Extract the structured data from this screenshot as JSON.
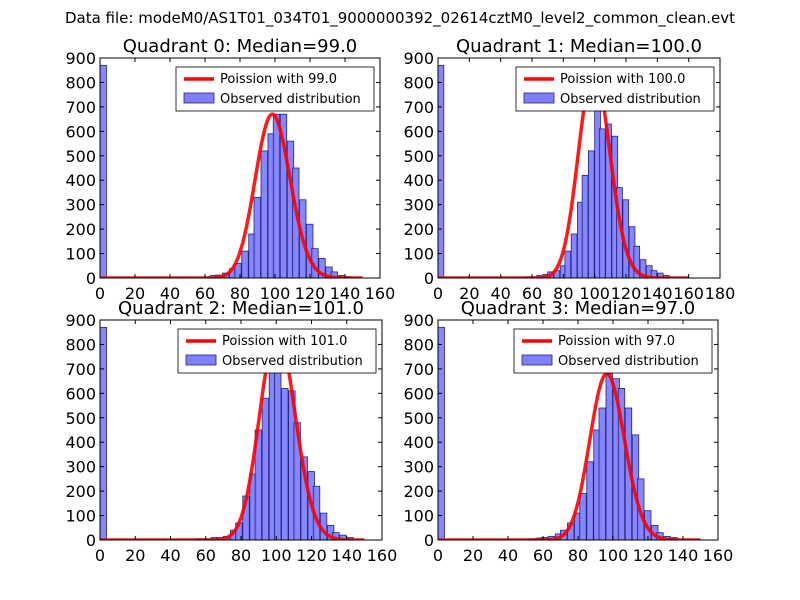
{
  "figure": {
    "suptitle": "Data file: modeM0/AS1T01_034T01_9000000392_02614cztM0_level2_common_clean.evt"
  },
  "colors": {
    "hist_fill": "#8080ff",
    "hist_edge": "#23237a",
    "poisson": "#ff0000"
  },
  "chart_data": [
    {
      "type": "bar",
      "title": "Quadrant 0: Median=99.0",
      "xlim": [
        0,
        160
      ],
      "ylim": [
        0,
        900
      ],
      "xticks": [
        0,
        20,
        40,
        60,
        80,
        100,
        120,
        140,
        160
      ],
      "yticks": [
        0,
        100,
        200,
        300,
        400,
        500,
        600,
        700,
        800,
        900
      ],
      "legend": {
        "position": "top-right",
        "entries": [
          "Poission with 99.0",
          "Observed distribution"
        ]
      },
      "bin_width": 3.7,
      "bins": [
        [
          0,
          870
        ],
        [
          59,
          3
        ],
        [
          63,
          10
        ],
        [
          66,
          12
        ],
        [
          70,
          20
        ],
        [
          74,
          38
        ],
        [
          77,
          60
        ],
        [
          81,
          110
        ],
        [
          85,
          180
        ],
        [
          88,
          330
        ],
        [
          92,
          520
        ],
        [
          96,
          590
        ],
        [
          99,
          670
        ],
        [
          103,
          670
        ],
        [
          107,
          560
        ],
        [
          110,
          450
        ],
        [
          114,
          320
        ],
        [
          118,
          220
        ],
        [
          121,
          120
        ],
        [
          125,
          80
        ],
        [
          129,
          45
        ],
        [
          132,
          25
        ],
        [
          136,
          10
        ],
        [
          140,
          5
        ]
      ],
      "poisson": {
        "label": "Poission with 99.0",
        "mean": 99.0,
        "x_range": [
          0,
          150
        ]
      }
    },
    {
      "type": "bar",
      "title": "Quadrant 1: Median=100.0",
      "xlim": [
        0,
        180
      ],
      "ylim": [
        0,
        900
      ],
      "xticks": [
        0,
        20,
        40,
        60,
        80,
        100,
        120,
        140,
        160,
        180
      ],
      "yticks": [
        0,
        100,
        200,
        300,
        400,
        500,
        600,
        700,
        800,
        900
      ],
      "legend": {
        "position": "top-right",
        "entries": [
          "Poission with 100.0",
          "Observed distribution"
        ]
      },
      "bin_width": 3.7,
      "bins": [
        [
          0,
          870
        ],
        [
          56,
          5
        ],
        [
          60,
          5
        ],
        [
          63,
          10
        ],
        [
          67,
          15
        ],
        [
          70,
          25
        ],
        [
          74,
          30
        ],
        [
          78,
          50
        ],
        [
          81,
          110
        ],
        [
          85,
          180
        ],
        [
          89,
          310
        ],
        [
          92,
          420
        ],
        [
          96,
          520
        ],
        [
          100,
          850
        ],
        [
          103,
          610
        ],
        [
          107,
          630
        ],
        [
          111,
          580
        ],
        [
          114,
          370
        ],
        [
          118,
          320
        ],
        [
          122,
          210
        ],
        [
          125,
          130
        ],
        [
          129,
          75
        ],
        [
          133,
          50
        ],
        [
          136,
          30
        ],
        [
          140,
          20
        ],
        [
          144,
          10
        ]
      ],
      "poisson": {
        "label": "Poission with 100.0",
        "mean": 100.0,
        "x_range": [
          0,
          160
        ]
      }
    },
    {
      "type": "bar",
      "title": "Quadrant 2: Median=101.0",
      "xlim": [
        0,
        160
      ],
      "ylim": [
        0,
        900
      ],
      "xticks": [
        0,
        20,
        40,
        60,
        80,
        100,
        120,
        140,
        160
      ],
      "yticks": [
        0,
        100,
        200,
        300,
        400,
        500,
        600,
        700,
        800,
        900
      ],
      "legend": {
        "position": "top-right",
        "entries": [
          "Poission with 101.0",
          "Observed distribution"
        ]
      },
      "bin_width": 3.7,
      "bins": [
        [
          0,
          870
        ],
        [
          55,
          5
        ],
        [
          59,
          5
        ],
        [
          63,
          10
        ],
        [
          66,
          10
        ],
        [
          70,
          15
        ],
        [
          74,
          40
        ],
        [
          77,
          70
        ],
        [
          81,
          180
        ],
        [
          85,
          270
        ],
        [
          88,
          450
        ],
        [
          92,
          580
        ],
        [
          96,
          850
        ],
        [
          99,
          820
        ],
        [
          103,
          620
        ],
        [
          107,
          610
        ],
        [
          110,
          480
        ],
        [
          114,
          340
        ],
        [
          118,
          280
        ],
        [
          121,
          220
        ],
        [
          125,
          110
        ],
        [
          129,
          60
        ],
        [
          132,
          30
        ],
        [
          136,
          20
        ],
        [
          140,
          10
        ]
      ],
      "poisson": {
        "label": "Poission with 101.0",
        "mean": 101.0,
        "x_range": [
          0,
          150
        ]
      }
    },
    {
      "type": "bar",
      "title": "Quadrant 3: Median=97.0",
      "xlim": [
        0,
        160
      ],
      "ylim": [
        0,
        900
      ],
      "xticks": [
        0,
        20,
        40,
        60,
        80,
        100,
        120,
        140,
        160
      ],
      "yticks": [
        0,
        100,
        200,
        300,
        400,
        500,
        600,
        700,
        800,
        900
      ],
      "legend": {
        "position": "top-right",
        "entries": [
          "Poission with 97.0",
          "Observed distribution"
        ]
      },
      "bin_width": 3.7,
      "bins": [
        [
          0,
          870
        ],
        [
          52,
          5
        ],
        [
          56,
          8
        ],
        [
          59,
          10
        ],
        [
          63,
          15
        ],
        [
          67,
          25
        ],
        [
          70,
          40
        ],
        [
          74,
          70
        ],
        [
          78,
          110
        ],
        [
          81,
          190
        ],
        [
          85,
          320
        ],
        [
          89,
          450
        ],
        [
          92,
          540
        ],
        [
          96,
          680
        ],
        [
          100,
          660
        ],
        [
          103,
          620
        ],
        [
          107,
          540
        ],
        [
          111,
          430
        ],
        [
          114,
          250
        ],
        [
          118,
          120
        ],
        [
          122,
          60
        ],
        [
          125,
          30
        ],
        [
          129,
          15
        ],
        [
          133,
          10
        ]
      ],
      "poisson": {
        "label": "Poission with 97.0",
        "mean": 97.0,
        "x_range": [
          0,
          150
        ]
      }
    }
  ]
}
